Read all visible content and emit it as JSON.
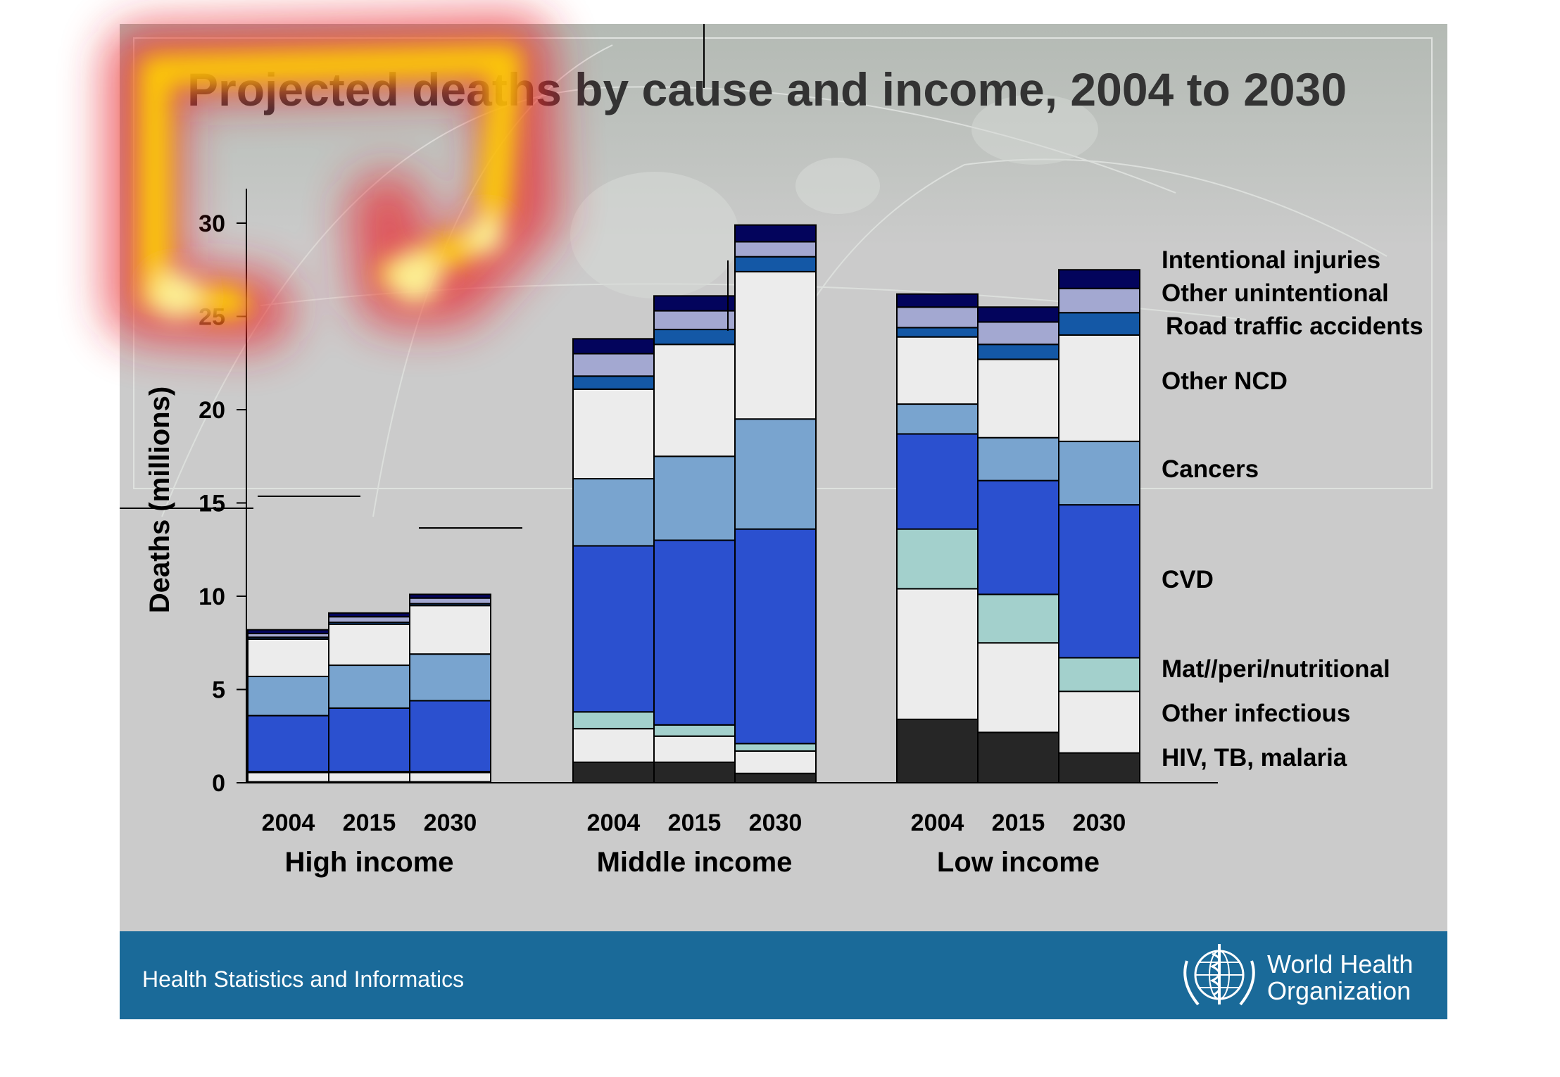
{
  "footer": {
    "text": "Health Statistics and Informatics",
    "org_line1": "World Health",
    "org_line2": "Organization",
    "color": "#1a6a99"
  },
  "chart_data": {
    "type": "bar",
    "stacked": true,
    "title": "Projected deaths by cause and income, 2004 to 2030",
    "ylabel": "Deaths (millions)",
    "xlabel": "",
    "ylim": [
      0,
      32
    ],
    "yticks": [
      0,
      5,
      10,
      15,
      20,
      25,
      30
    ],
    "groups": [
      {
        "name": "High income",
        "years": [
          "2004",
          "2015",
          "2030"
        ]
      },
      {
        "name": "Middle income",
        "years": [
          "2004",
          "2015",
          "2030"
        ]
      },
      {
        "name": "Low income",
        "years": [
          "2004",
          "2015",
          "2030"
        ]
      }
    ],
    "legend_placement": "right",
    "series": [
      {
        "name": "HIV, TB, malaria",
        "color": "#262626",
        "values": [
          0.05,
          0.05,
          0.05,
          1.1,
          1.1,
          0.5,
          3.4,
          2.7,
          1.6
        ]
      },
      {
        "name": "Other infectious",
        "color": "#ececec",
        "values": [
          0.5,
          0.5,
          0.5,
          1.8,
          1.4,
          1.2,
          7.0,
          4.8,
          3.3
        ]
      },
      {
        "name": "Mat//peri/nutritional",
        "color": "#a3d0cc",
        "values": [
          0.05,
          0.05,
          0.05,
          0.9,
          0.6,
          0.4,
          3.2,
          2.6,
          1.8
        ]
      },
      {
        "name": "CVD",
        "color": "#2b50cf",
        "values": [
          3.0,
          3.4,
          3.8,
          8.9,
          9.9,
          11.5,
          5.1,
          6.1,
          8.2
        ]
      },
      {
        "name": "Cancers",
        "color": "#79a4cf",
        "values": [
          2.1,
          2.3,
          2.5,
          3.6,
          4.5,
          5.9,
          1.6,
          2.3,
          3.4
        ]
      },
      {
        "name": "Other NCD",
        "color": "#ececec",
        "values": [
          2.0,
          2.2,
          2.6,
          4.8,
          6.0,
          7.9,
          3.6,
          4.2,
          5.7
        ]
      },
      {
        "name": "Road traffic accidents",
        "color": "#1458a6",
        "values": [
          0.1,
          0.1,
          0.1,
          0.7,
          0.8,
          0.8,
          0.5,
          0.8,
          1.2
        ]
      },
      {
        "name": "Other unintentional",
        "color": "#a3a8d1",
        "values": [
          0.2,
          0.3,
          0.3,
          1.2,
          1.0,
          0.8,
          1.1,
          1.2,
          1.3
        ]
      },
      {
        "name": "Intentional injuries",
        "color": "#03045c",
        "values": [
          0.2,
          0.2,
          0.2,
          0.8,
          0.8,
          0.9,
          0.7,
          0.8,
          1.0
        ]
      }
    ]
  }
}
